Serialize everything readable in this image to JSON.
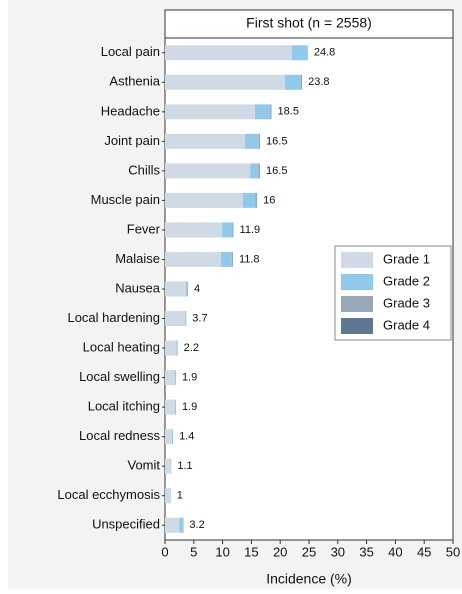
{
  "chart_data": {
    "type": "stacked-barh",
    "title": "First shot (n = 2558)",
    "xlabel": "Incidence (%)",
    "categories": [
      "Local pain",
      "Asthenia",
      "Headache",
      "Joint pain",
      "Chills",
      "Muscle pain",
      "Fever",
      "Malaise",
      "Nausea",
      "Local hardening",
      "Local heating",
      "Local swelling",
      "Local itching",
      "Local redness",
      "Vomit",
      "Local ecchymosis",
      "Unspecified"
    ],
    "series": [
      {
        "name": "Grade 1",
        "color": "#d0dae5",
        "values": [
          22.0,
          20.8,
          15.6,
          13.9,
          14.8,
          13.5,
          9.9,
          9.7,
          3.6,
          3.5,
          2.0,
          1.7,
          1.7,
          1.2,
          1.0,
          0.9,
          2.5
        ]
      },
      {
        "name": "Grade 2",
        "color": "#92c9ea",
        "values": [
          2.8,
          2.8,
          2.7,
          2.4,
          1.4,
          2.2,
          1.8,
          1.9,
          0.4,
          0.2,
          0.2,
          0.2,
          0.2,
          0.2,
          0.1,
          0.1,
          0.6
        ]
      },
      {
        "name": "Grade 3",
        "color": "#98a8b8",
        "values": [
          0,
          0.2,
          0.2,
          0.2,
          0.3,
          0.3,
          0.2,
          0.2,
          0,
          0,
          0,
          0,
          0,
          0,
          0,
          0,
          0.1
        ]
      },
      {
        "name": "Grade 4",
        "color": "#5d7890",
        "values": [
          0,
          0,
          0,
          0,
          0,
          0,
          0,
          0,
          0,
          0,
          0,
          0,
          0,
          0,
          0,
          0,
          0
        ]
      }
    ],
    "totals": [
      24.8,
      23.8,
      18.5,
      16.5,
      16.5,
      16.0,
      11.9,
      11.8,
      4.0,
      3.7,
      2.2,
      1.9,
      1.9,
      1.4,
      1.1,
      1.0,
      3.2
    ],
    "xlim": [
      0,
      50
    ],
    "xticks": [
      0,
      5,
      10,
      15,
      20,
      25,
      30,
      35,
      40,
      45,
      50
    ],
    "legend": "right"
  }
}
